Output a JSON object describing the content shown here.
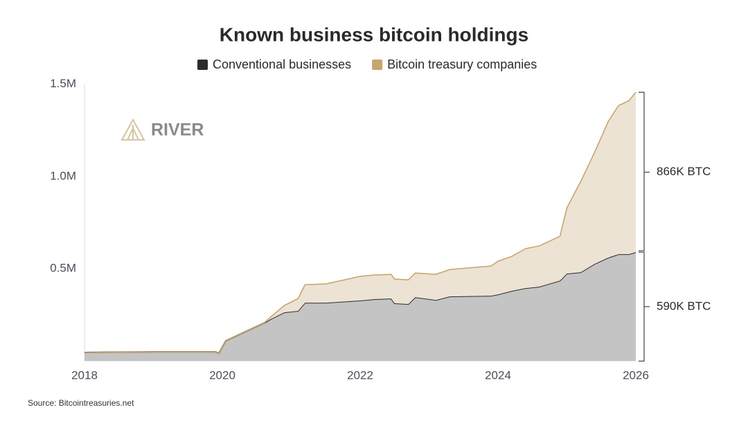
{
  "chart_data": {
    "type": "stacked-area",
    "title": "Known business bitcoin holdings",
    "logo": "RIVER",
    "source": "Source: Bitcointreasuries.net",
    "x": [
      2018.0,
      2019.0,
      2019.9,
      2019.95,
      2020.05,
      2020.6,
      2020.7,
      2020.9,
      2021.1,
      2021.2,
      2021.5,
      2022.0,
      2022.2,
      2022.45,
      2022.5,
      2022.7,
      2022.8,
      2023.1,
      2023.3,
      2023.9,
      2024.0,
      2024.2,
      2024.4,
      2024.6,
      2024.9,
      2025.0,
      2025.2,
      2025.4,
      2025.6,
      2025.75,
      2025.9,
      2026.0
    ],
    "series": [
      {
        "name": "Conventional businesses",
        "color": "#2b2b2b",
        "fill": "#c4c4c4",
        "values": [
          47000,
          50000,
          50000,
          43000,
          110000,
          205000,
          227000,
          264000,
          272000,
          316000,
          316000,
          328000,
          335000,
          339000,
          313000,
          309000,
          346000,
          331000,
          350000,
          354000,
          361000,
          380000,
          395000,
          403000,
          436000,
          474000,
          481000,
          526000,
          560000,
          579000,
          579000,
          590000
        ]
      },
      {
        "name": "Bitcoin treasury companies",
        "color": "#c9a66b",
        "fill": "#ece3d4",
        "values": [
          0,
          0,
          0,
          0,
          0,
          0,
          11000,
          37000,
          67000,
          98000,
          102000,
          131000,
          131000,
          131000,
          131000,
          131000,
          131000,
          139000,
          146000,
          161000,
          180000,
          187000,
          214000,
          221000,
          240000,
          356000,
          491000,
          603000,
          738000,
          805000,
          831000,
          866000
        ]
      }
    ],
    "annotations": [
      "590K BTC",
      "866K BTC"
    ],
    "xlim": [
      2018,
      2026
    ],
    "xticks": [
      2018,
      2020,
      2022,
      2024,
      2026
    ],
    "ylim": [
      0,
      1500000
    ],
    "yticks": [
      {
        "value": 500000,
        "label": "0.5M"
      },
      {
        "value": 1000000,
        "label": "1.0M"
      },
      {
        "value": 1500000,
        "label": "1.5M"
      }
    ],
    "grid": false
  }
}
